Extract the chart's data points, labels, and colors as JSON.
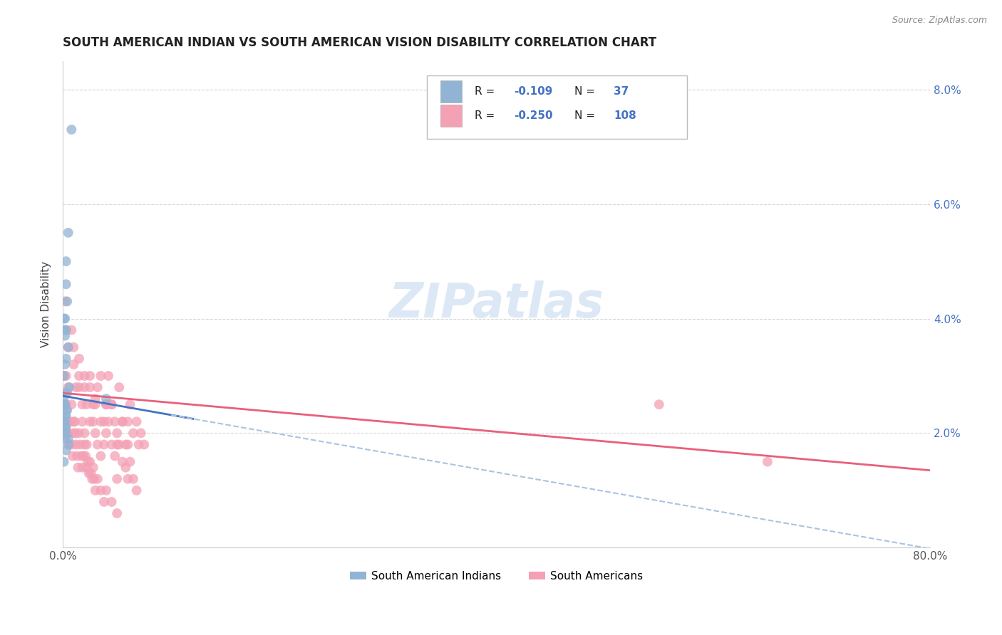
{
  "title": "SOUTH AMERICAN INDIAN VS SOUTH AMERICAN VISION DISABILITY CORRELATION CHART",
  "source": "Source: ZipAtlas.com",
  "ylabel": "Vision Disability",
  "legend_label1": "South American Indians",
  "legend_label2": "South Americans",
  "r1": "-0.109",
  "n1": "37",
  "r2": "-0.250",
  "n2": "108",
  "color_blue": "#92b4d4",
  "color_pink": "#f4a0b5",
  "color_blue_line": "#4472c4",
  "color_pink_line": "#e8607a",
  "color_blue_dash": "#a8c4e0",
  "watermark_color": "#dce8f5",
  "background_color": "#ffffff",
  "grid_color": "#cccccc",
  "xlim": [
    0.0,
    0.8
  ],
  "ylim": [
    0.0,
    0.085
  ],
  "blue_scatter_x": [
    0.008,
    0.005,
    0.003,
    0.003,
    0.004,
    0.002,
    0.001,
    0.001,
    0.003,
    0.002,
    0.005,
    0.003,
    0.002,
    0.001,
    0.006,
    0.004,
    0.002,
    0.001,
    0.001,
    0.002,
    0.003,
    0.004,
    0.003,
    0.002,
    0.002,
    0.001,
    0.003,
    0.001,
    0.002,
    0.001,
    0.003,
    0.005,
    0.002,
    0.005,
    0.003,
    0.001,
    0.04
  ],
  "blue_scatter_y": [
    0.073,
    0.055,
    0.05,
    0.046,
    0.043,
    0.04,
    0.04,
    0.038,
    0.038,
    0.037,
    0.035,
    0.033,
    0.032,
    0.03,
    0.028,
    0.027,
    0.027,
    0.026,
    0.025,
    0.025,
    0.024,
    0.024,
    0.023,
    0.023,
    0.022,
    0.022,
    0.021,
    0.021,
    0.021,
    0.02,
    0.02,
    0.019,
    0.019,
    0.018,
    0.017,
    0.015,
    0.026
  ],
  "pink_scatter_x": [
    0.002,
    0.003,
    0.005,
    0.008,
    0.01,
    0.012,
    0.015,
    0.018,
    0.02,
    0.022,
    0.025,
    0.028,
    0.03,
    0.032,
    0.035,
    0.038,
    0.04,
    0.042,
    0.045,
    0.048,
    0.05,
    0.052,
    0.055,
    0.058,
    0.06,
    0.062,
    0.065,
    0.068,
    0.07,
    0.072,
    0.075,
    0.01,
    0.015,
    0.02,
    0.025,
    0.03,
    0.035,
    0.04,
    0.045,
    0.05,
    0.055,
    0.06,
    0.002,
    0.003,
    0.005,
    0.008,
    0.01,
    0.012,
    0.015,
    0.018,
    0.02,
    0.022,
    0.025,
    0.028,
    0.03,
    0.032,
    0.035,
    0.038,
    0.04,
    0.042,
    0.045,
    0.048,
    0.05,
    0.052,
    0.055,
    0.058,
    0.06,
    0.062,
    0.065,
    0.068,
    0.001,
    0.002,
    0.003,
    0.004,
    0.005,
    0.006,
    0.007,
    0.008,
    0.009,
    0.01,
    0.011,
    0.012,
    0.013,
    0.014,
    0.015,
    0.016,
    0.017,
    0.018,
    0.019,
    0.02,
    0.021,
    0.022,
    0.023,
    0.024,
    0.025,
    0.026,
    0.027,
    0.028,
    0.029,
    0.03,
    0.032,
    0.035,
    0.038,
    0.04,
    0.045,
    0.05,
    0.55,
    0.65
  ],
  "pink_scatter_y": [
    0.043,
    0.038,
    0.035,
    0.038,
    0.032,
    0.028,
    0.03,
    0.025,
    0.028,
    0.025,
    0.03,
    0.022,
    0.026,
    0.028,
    0.03,
    0.022,
    0.025,
    0.03,
    0.025,
    0.022,
    0.018,
    0.028,
    0.022,
    0.018,
    0.022,
    0.025,
    0.02,
    0.022,
    0.018,
    0.02,
    0.018,
    0.035,
    0.033,
    0.03,
    0.028,
    0.025,
    0.022,
    0.025,
    0.025,
    0.02,
    0.022,
    0.018,
    0.025,
    0.03,
    0.028,
    0.025,
    0.022,
    0.02,
    0.028,
    0.022,
    0.02,
    0.018,
    0.022,
    0.025,
    0.02,
    0.018,
    0.016,
    0.018,
    0.02,
    0.022,
    0.018,
    0.016,
    0.012,
    0.018,
    0.015,
    0.014,
    0.012,
    0.015,
    0.012,
    0.01,
    0.03,
    0.025,
    0.025,
    0.022,
    0.02,
    0.018,
    0.022,
    0.018,
    0.016,
    0.02,
    0.022,
    0.018,
    0.016,
    0.014,
    0.02,
    0.018,
    0.016,
    0.014,
    0.016,
    0.018,
    0.016,
    0.014,
    0.015,
    0.013,
    0.015,
    0.013,
    0.012,
    0.014,
    0.012,
    0.01,
    0.012,
    0.01,
    0.008,
    0.01,
    0.008,
    0.006,
    0.025,
    0.015
  ],
  "yticks": [
    0.0,
    0.02,
    0.04,
    0.06,
    0.08
  ],
  "ytick_labels_right": [
    "",
    "2.0%",
    "4.0%",
    "6.0%",
    "8.0%"
  ],
  "xticks": [
    0.0,
    0.2,
    0.4,
    0.6,
    0.8
  ],
  "xtick_labels": [
    "0.0%",
    "",
    "",
    "",
    "80.0%"
  ]
}
